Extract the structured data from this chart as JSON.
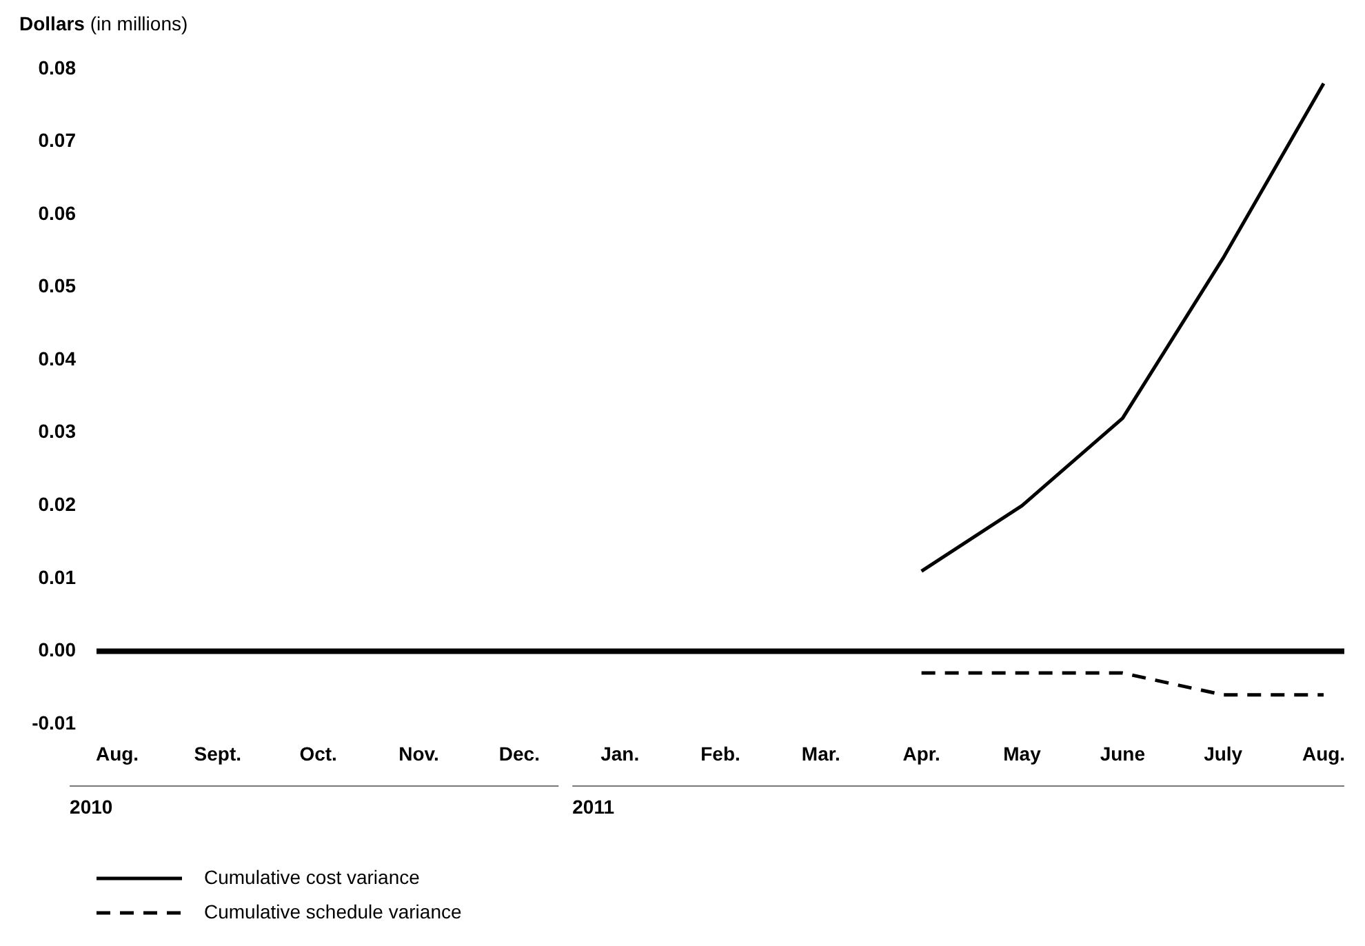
{
  "chart_data": {
    "type": "line",
    "ylabel": "Dollars (in millions)",
    "categories": [
      "Aug.",
      "Sept.",
      "Oct.",
      "Nov.",
      "Dec.",
      "Jan.",
      "Feb.",
      "Mar.",
      "Apr.",
      "May",
      "June",
      "July",
      "Aug."
    ],
    "series": [
      {
        "name": "Cumulative cost variance",
        "color": "#000000",
        "line_style": "solid",
        "values": [
          null,
          null,
          null,
          null,
          null,
          null,
          null,
          null,
          0.011,
          0.02,
          0.032,
          0.054,
          0.078
        ]
      },
      {
        "name": "Cumulative schedule variance",
        "color": "#000000",
        "line_style": "dashed",
        "values": [
          null,
          null,
          null,
          null,
          null,
          null,
          null,
          null,
          -0.003,
          -0.003,
          -0.003,
          -0.006,
          -0.006
        ]
      }
    ],
    "ylim": [
      -0.01,
      0.08
    ],
    "yticks": [
      {
        "value": -0.01,
        "label": "-0.01"
      },
      {
        "value": 0,
        "label": "0.00"
      },
      {
        "value": 0.01,
        "label": "0.01"
      },
      {
        "value": 0.02,
        "label": "0.02"
      },
      {
        "value": 0.03,
        "label": "0.03"
      },
      {
        "value": 0.04,
        "label": "0.04"
      },
      {
        "value": 0.05,
        "label": "0.05"
      },
      {
        "value": 0.06,
        "label": "0.06"
      },
      {
        "value": 0.07,
        "label": "0.07"
      },
      {
        "value": 0.08,
        "label": "0.08"
      }
    ],
    "ref_lines": [
      {
        "axis": "y",
        "value": 0,
        "color": "#000000"
      }
    ],
    "annotations": [
      "2010",
      "2011"
    ],
    "marker": "none",
    "grid": false,
    "legend": "bottom left"
  }
}
